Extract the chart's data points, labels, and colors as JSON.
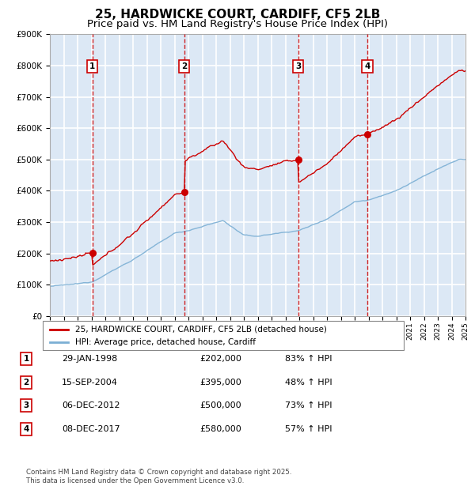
{
  "title": "25, HARDWICKE COURT, CARDIFF, CF5 2LB",
  "subtitle": "Price paid vs. HM Land Registry's House Price Index (HPI)",
  "ylim": [
    0,
    900000
  ],
  "yticks": [
    0,
    100000,
    200000,
    300000,
    400000,
    500000,
    600000,
    700000,
    800000,
    900000
  ],
  "ytick_labels": [
    "£0",
    "£100K",
    "£200K",
    "£300K",
    "£400K",
    "£500K",
    "£600K",
    "£700K",
    "£800K",
    "£900K"
  ],
  "sales": [
    {
      "num": 1,
      "date_year": 1998.08,
      "price": 202000,
      "pct": "83%",
      "date_str": "29-JAN-1998"
    },
    {
      "num": 2,
      "date_year": 2004.71,
      "price": 395000,
      "pct": "48%",
      "date_str": "15-SEP-2004"
    },
    {
      "num": 3,
      "date_year": 2012.92,
      "price": 500000,
      "pct": "73%",
      "date_str": "06-DEC-2012"
    },
    {
      "num": 4,
      "date_year": 2017.92,
      "price": 580000,
      "pct": "57%",
      "date_str": "08-DEC-2017"
    }
  ],
  "red_line_color": "#cc0000",
  "blue_line_color": "#7bafd4",
  "vline_color": "#cc0000",
  "plot_bg_color": "#dce8f5",
  "grid_color": "#ffffff",
  "legend_label_red": "25, HARDWICKE COURT, CARDIFF, CF5 2LB (detached house)",
  "legend_label_blue": "HPI: Average price, detached house, Cardiff",
  "footer": "Contains HM Land Registry data © Crown copyright and database right 2025.\nThis data is licensed under the Open Government Licence v3.0.",
  "title_fontsize": 11,
  "subtitle_fontsize": 9.5,
  "x_start_year": 1995,
  "x_end_year": 2025
}
